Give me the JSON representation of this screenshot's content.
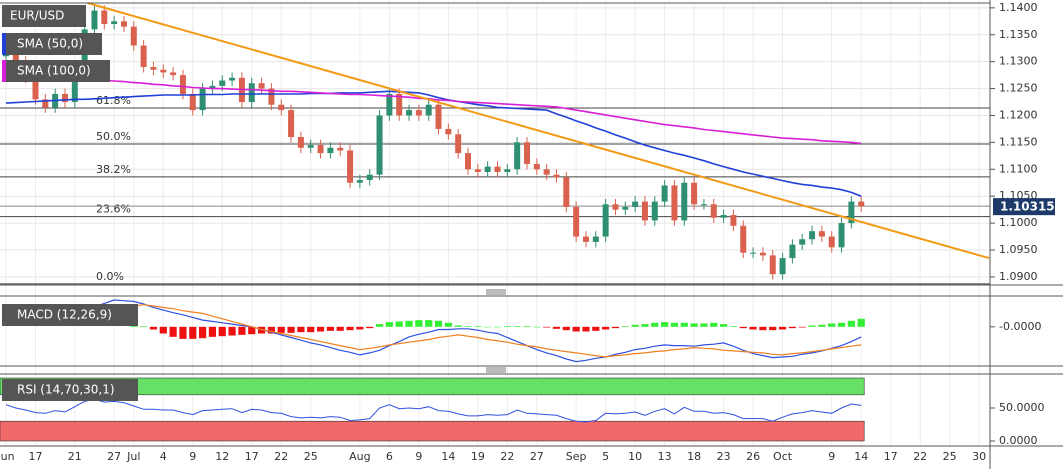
{
  "chart_data": {
    "type": "candlestick",
    "title": "EUR/USD",
    "categories": [
      "Jun",
      null,
      null,
      "17",
      null,
      null,
      null,
      "21",
      null,
      null,
      null,
      "27",
      null,
      "Jul",
      null,
      null,
      "4",
      null,
      null,
      "9",
      null,
      null,
      "12",
      null,
      null,
      "17",
      null,
      null,
      "22",
      null,
      null,
      "25",
      null,
      null,
      null,
      null,
      "Aug",
      null,
      null,
      "6",
      null,
      null,
      "9",
      null,
      null,
      "14",
      null,
      null,
      "19",
      null,
      null,
      "22",
      null,
      null,
      "27",
      null,
      null,
      null,
      "Sep",
      null,
      null,
      "5",
      null,
      null,
      "10",
      null,
      null,
      "13",
      null,
      null,
      "18",
      null,
      null,
      "23",
      null,
      null,
      "26",
      null,
      null,
      "Oct",
      null,
      null,
      null,
      null,
      "9",
      null,
      null,
      "14",
      null,
      null,
      "17",
      null,
      null,
      "22",
      null,
      null,
      "25",
      null,
      null,
      "30",
      null
    ],
    "open": [
      1.131,
      1.1335,
      1.13,
      1.127,
      1.123,
      1.1215,
      1.124,
      1.1225,
      1.129,
      1.136,
      1.1395,
      1.137,
      1.1375,
      1.1365,
      1.133,
      1.129,
      1.1285,
      1.128,
      1.1275,
      1.124,
      1.121,
      1.125,
      1.1255,
      1.1265,
      1.127,
      1.1225,
      1.126,
      1.125,
      1.122,
      1.121,
      1.116,
      1.114,
      1.1145,
      1.113,
      1.114,
      1.1135,
      1.1075,
      1.108,
      1.109,
      1.12,
      1.124,
      1.12,
      1.121,
      1.12,
      1.122,
      1.1175,
      1.1165,
      1.113,
      1.11,
      1.1095,
      1.1105,
      1.1095,
      1.11,
      1.115,
      1.111,
      1.11,
      1.109,
      1.1085,
      1.103,
      1.0975,
      1.0965,
      1.0975,
      1.1035,
      1.1025,
      1.103,
      1.104,
      1.1005,
      1.104,
      1.107,
      1.1005,
      1.1075,
      1.1035,
      1.1035,
      1.101,
      1.1015,
      1.0995,
      1.0945,
      1.0945,
      1.094,
      1.0905,
      1.0935,
      1.096,
      1.097,
      1.0985,
      1.0975,
      1.0955,
      1.1,
      1.104,
      null,
      null,
      null,
      null,
      null,
      null,
      null,
      null,
      null,
      null,
      null,
      null,
      null
    ],
    "high": [
      1.1345,
      1.1345,
      1.131,
      1.128,
      1.124,
      1.125,
      1.125,
      1.13,
      1.137,
      1.1405,
      1.1405,
      1.1385,
      1.1385,
      1.1375,
      1.134,
      1.13,
      1.1295,
      1.129,
      1.1285,
      1.125,
      1.126,
      1.1265,
      1.1275,
      1.128,
      1.128,
      1.127,
      1.127,
      1.126,
      1.123,
      1.122,
      1.117,
      1.1155,
      1.1155,
      1.115,
      1.115,
      1.1145,
      1.109,
      1.11,
      1.121,
      1.125,
      1.125,
      1.122,
      1.122,
      1.123,
      1.123,
      1.1185,
      1.1175,
      1.114,
      1.111,
      1.1115,
      1.1115,
      1.111,
      1.116,
      1.116,
      1.112,
      1.111,
      1.11,
      1.1095,
      1.104,
      1.0985,
      1.0985,
      1.1045,
      1.1045,
      1.104,
      1.105,
      1.105,
      1.105,
      1.108,
      1.108,
      1.1085,
      1.1085,
      1.1045,
      1.1045,
      1.1025,
      1.1025,
      1.1005,
      1.0955,
      1.0955,
      1.095,
      1.0945,
      1.097,
      1.098,
      1.0995,
      1.0995,
      1.0985,
      1.101,
      1.105,
      1.105,
      null,
      null,
      null,
      null,
      null,
      null,
      null,
      null,
      null,
      null,
      null,
      null,
      null
    ],
    "low": [
      1.13,
      1.129,
      1.126,
      1.122,
      1.1205,
      1.1205,
      1.1215,
      1.1215,
      1.128,
      1.135,
      1.136,
      1.136,
      1.1355,
      1.132,
      1.128,
      1.1275,
      1.127,
      1.1265,
      1.123,
      1.12,
      1.12,
      1.124,
      1.1245,
      1.1255,
      1.1215,
      1.1215,
      1.124,
      1.121,
      1.12,
      1.115,
      1.113,
      1.113,
      1.112,
      1.112,
      1.1125,
      1.1065,
      1.1065,
      1.107,
      1.108,
      1.119,
      1.119,
      1.119,
      1.119,
      1.119,
      1.1165,
      1.1155,
      1.112,
      1.109,
      1.1085,
      1.1085,
      1.1085,
      1.1085,
      1.109,
      1.11,
      1.109,
      1.108,
      1.1075,
      1.102,
      1.0965,
      1.0955,
      1.0955,
      1.0965,
      1.1015,
      1.1015,
      1.102,
      1.0995,
      1.0995,
      1.103,
      1.0995,
      1.0995,
      1.1025,
      1.1025,
      1.1,
      1.1,
      1.0985,
      1.0935,
      1.0935,
      1.093,
      1.0895,
      1.0895,
      1.0925,
      1.095,
      1.096,
      1.0965,
      1.0945,
      1.0945,
      1.099,
      1.1021,
      null,
      null,
      null,
      null,
      null,
      null,
      null,
      null,
      null,
      null,
      null,
      null,
      null
    ],
    "close": [
      1.1335,
      1.13,
      1.127,
      1.123,
      1.1215,
      1.124,
      1.1225,
      1.129,
      1.136,
      1.1395,
      1.137,
      1.1375,
      1.1365,
      1.133,
      1.129,
      1.1285,
      1.128,
      1.1275,
      1.124,
      1.121,
      1.125,
      1.1255,
      1.1265,
      1.127,
      1.1225,
      1.126,
      1.125,
      1.122,
      1.121,
      1.116,
      1.114,
      1.1145,
      1.113,
      1.114,
      1.1135,
      1.1075,
      1.108,
      1.109,
      1.12,
      1.124,
      1.12,
      1.121,
      1.12,
      1.122,
      1.1175,
      1.1165,
      1.113,
      1.11,
      1.1095,
      1.1105,
      1.1095,
      1.11,
      1.115,
      1.111,
      1.11,
      1.109,
      1.1085,
      1.103,
      1.0975,
      1.0965,
      1.0975,
      1.1035,
      1.1025,
      1.103,
      1.104,
      1.1005,
      1.104,
      1.107,
      1.1005,
      1.1075,
      1.1035,
      1.1035,
      1.101,
      1.1015,
      1.0995,
      1.0945,
      1.0945,
      1.094,
      1.0905,
      1.0935,
      1.096,
      1.097,
      1.0985,
      1.0975,
      1.0955,
      1.1,
      1.104,
      1.1031,
      null,
      null,
      null,
      null,
      null,
      null,
      null,
      null,
      null,
      null,
      null,
      null,
      null
    ],
    "up_color": "#2f8f73",
    "down_color": "#d9614d",
    "ylim": [
      1.0885,
      1.1409
    ],
    "yticks": [
      {
        "value": 1.09,
        "label": "1.0900"
      },
      {
        "value": 1.095,
        "label": "1.0950"
      },
      {
        "value": 1.1,
        "label": "1.1000"
      },
      {
        "value": 1.105,
        "label": "1.1050"
      },
      {
        "value": 1.11,
        "label": "1.1100"
      },
      {
        "value": 1.115,
        "label": "1.1150"
      },
      {
        "value": 1.12,
        "label": "1.1200"
      },
      {
        "value": 1.125,
        "label": "1.1250"
      },
      {
        "value": 1.13,
        "label": "1.1300"
      },
      {
        "value": 1.135,
        "label": "1.1350"
      },
      {
        "value": 1.14,
        "label": "1.1400"
      }
    ],
    "grid": true,
    "overlays": [
      {
        "name": "SMA (50,0)",
        "color": "#2140d8",
        "values": [
          1.1223,
          1.1224,
          1.1225,
          1.1226,
          1.1227,
          1.1228,
          1.1229,
          1.123,
          1.123,
          1.1231,
          1.1232,
          1.1233,
          1.1234,
          1.1235,
          1.1236,
          1.1237,
          1.1238,
          1.1238,
          1.1238,
          1.1238,
          1.1239,
          1.1239,
          1.1239,
          1.124,
          1.124,
          1.124,
          1.124,
          1.124,
          1.124,
          1.124,
          1.124,
          1.1241,
          1.1241,
          1.1241,
          1.1242,
          1.1242,
          1.1242,
          1.1243,
          1.1244,
          1.1245,
          1.1244,
          1.1243,
          1.1242,
          1.1238,
          1.1233,
          1.1229,
          1.1226,
          1.1223,
          1.122,
          1.1218,
          1.1215,
          1.1214,
          1.1213,
          1.1212,
          1.1211,
          1.121,
          1.1203,
          1.1197,
          1.119,
          1.1184,
          1.1177,
          1.1171,
          1.1164,
          1.1158,
          1.1151,
          1.1145,
          1.114,
          1.1135,
          1.113,
          1.1126,
          1.1121,
          1.1116,
          1.111,
          1.1105,
          1.11,
          1.1095,
          1.1091,
          1.1087,
          1.1083,
          1.1079,
          1.1075,
          1.1072,
          1.107,
          1.1067,
          1.1065,
          1.1062,
          1.1057,
          1.105,
          null,
          null,
          null,
          null,
          null,
          null,
          null,
          null,
          null,
          null,
          null,
          null,
          null
        ]
      },
      {
        "name": "SMA (100,0)",
        "color": "#d81fd8",
        "values": [
          1.1279,
          1.1278,
          1.1276,
          1.1275,
          1.1274,
          1.1272,
          1.1271,
          1.127,
          1.1268,
          1.1267,
          1.1266,
          1.1264,
          1.1263,
          1.1261,
          1.126,
          1.1258,
          1.1257,
          1.1255,
          1.1254,
          1.1252,
          1.1251,
          1.125,
          1.125,
          1.1249,
          1.1248,
          1.1248,
          1.1247,
          1.1246,
          1.1245,
          1.1245,
          1.1244,
          1.1243,
          1.1242,
          1.1241,
          1.124,
          1.1239,
          1.1239,
          1.1238,
          1.1237,
          1.1236,
          1.1235,
          1.1234,
          1.1232,
          1.1231,
          1.1229,
          1.1228,
          1.1226,
          1.1225,
          1.1224,
          1.1223,
          1.1222,
          1.1221,
          1.122,
          1.1219,
          1.1218,
          1.1217,
          1.1216,
          1.1213,
          1.121,
          1.1207,
          1.1204,
          1.1201,
          1.1198,
          1.1195,
          1.1192,
          1.1189,
          1.1186,
          1.1183,
          1.1181,
          1.1179,
          1.1177,
          1.1174,
          1.1172,
          1.117,
          1.1168,
          1.1166,
          1.1164,
          1.1162,
          1.116,
          1.1158,
          1.1157,
          1.1156,
          1.1155,
          1.1153,
          1.1152,
          1.1151,
          1.115,
          1.1148,
          null,
          null,
          null,
          null,
          null,
          null,
          null,
          null,
          null,
          null,
          null,
          null,
          null
        ]
      }
    ],
    "trendline": {
      "color": "#f39a14",
      "x": [
        8.3,
        100
      ],
      "values": [
        1.1409,
        1.0935
      ]
    },
    "fib_levels": [
      {
        "label": "0.0%",
        "value": 1.0887
      },
      {
        "label": "23.6%",
        "value": 1.1012
      },
      {
        "label": "38.2%",
        "value": 1.1086
      },
      {
        "label": "50.0%",
        "value": 1.1147
      },
      {
        "label": "61.8%",
        "value": 1.1214
      }
    ],
    "last_price": 1.10315,
    "indicators": [
      {
        "type": "macd",
        "name": "MACD (12,26,9)",
        "ylim": [
          -0.0057,
          0.0043
        ],
        "yticks": [
          {
            "value": 0,
            "label": "-0.0000"
          }
        ],
        "macd_color": "#3050e0",
        "signal_color": "#f08020",
        "positive_color": "#33ee33",
        "negative_color": "#ee1111",
        "macd": [
          0.0015,
          0.0014,
          0.0014,
          0.0013,
          0.0013,
          0.0012,
          0.0016,
          0.0021,
          0.0025,
          0.003,
          0.0035,
          0.004,
          0.0039,
          0.0038,
          0.0034,
          0.0029,
          0.0025,
          0.0021,
          0.0018,
          0.0014,
          0.001,
          0.0008,
          0.0006,
          0.0004,
          0.0002,
          0.0,
          -0.0004,
          -0.0008,
          -0.0012,
          -0.0016,
          -0.002,
          -0.0024,
          -0.0027,
          -0.0031,
          -0.0035,
          -0.0038,
          -0.0042,
          -0.0039,
          -0.0035,
          -0.0028,
          -0.0022,
          -0.0015,
          -0.0011,
          -0.0008,
          -0.0004,
          -0.0004,
          -0.0003,
          -0.0003,
          -0.0005,
          -0.0008,
          -0.001,
          -0.0016,
          -0.0022,
          -0.0028,
          -0.0034,
          -0.0039,
          -0.0043,
          -0.0048,
          -0.0052,
          -0.005,
          -0.0047,
          -0.0045,
          -0.0041,
          -0.0038,
          -0.0034,
          -0.0032,
          -0.0029,
          -0.0027,
          -0.0028,
          -0.0028,
          -0.0029,
          -0.0027,
          -0.0026,
          -0.0024,
          -0.0029,
          -0.0035,
          -0.004,
          -0.0043,
          -0.0046,
          -0.0045,
          -0.0044,
          -0.0041,
          -0.0039,
          -0.0036,
          -0.0032,
          -0.0028,
          -0.0022,
          -0.0015,
          null,
          null,
          null,
          null,
          null,
          null,
          null,
          null,
          null,
          null,
          null,
          null,
          null
        ],
        "signal": [
          0.001,
          0.0011,
          0.0012,
          0.0013,
          0.0013,
          0.0014,
          0.0015,
          0.0017,
          0.002,
          0.0022,
          0.0024,
          0.0027,
          0.0029,
          0.0031,
          0.0033,
          0.0031,
          0.0029,
          0.0027,
          0.0024,
          0.0022,
          0.002,
          0.0016,
          0.0012,
          0.0008,
          0.0004,
          0.0,
          -0.0004,
          -0.0007,
          -0.001,
          -0.0013,
          -0.0016,
          -0.0019,
          -0.0022,
          -0.0025,
          -0.0028,
          -0.0031,
          -0.0034,
          -0.0032,
          -0.003,
          -0.0027,
          -0.0025,
          -0.0023,
          -0.0021,
          -0.0019,
          -0.0016,
          -0.0014,
          -0.0012,
          -0.0014,
          -0.0016,
          -0.0019,
          -0.0021,
          -0.0023,
          -0.0026,
          -0.0028,
          -0.003,
          -0.0033,
          -0.0035,
          -0.0037,
          -0.0039,
          -0.0041,
          -0.0043,
          -0.0045,
          -0.0043,
          -0.0042,
          -0.004,
          -0.0039,
          -0.0037,
          -0.0036,
          -0.0034,
          -0.0033,
          -0.0031,
          -0.0032,
          -0.0033,
          -0.0035,
          -0.0036,
          -0.0037,
          -0.0038,
          -0.0039,
          -0.0041,
          -0.0042,
          -0.004,
          -0.0039,
          -0.0037,
          -0.0035,
          -0.0033,
          -0.0031,
          -0.0029,
          -0.0027,
          null,
          null,
          null,
          null,
          null,
          null,
          null,
          null,
          null,
          null,
          null,
          null,
          null
        ],
        "histogram": [
          null,
          null,
          null,
          null,
          null,
          null,
          null,
          null,
          null,
          null,
          null,
          null,
          null,
          0.0002,
          0.0001,
          -0.0004,
          -0.001,
          -0.0015,
          -0.0018,
          -0.0018,
          -0.0017,
          -0.0015,
          -0.0014,
          -0.0013,
          -0.0012,
          -0.0011,
          -0.001,
          -0.001,
          -0.0009,
          -0.0009,
          -0.0008,
          -0.0008,
          -0.0007,
          -0.0006,
          -0.0006,
          -0.0005,
          -0.0004,
          -0.0002,
          0.0004,
          0.0007,
          0.0008,
          0.0009,
          0.001,
          0.001,
          0.0009,
          0.0006,
          0.0002,
          0.0001,
          0.0001,
          0.0,
          0.0,
          0.0001,
          0.0001,
          0.0001,
          0.0,
          -0.0001,
          -0.0003,
          -0.0005,
          -0.0007,
          -0.0007,
          -0.0006,
          -0.0004,
          -0.0002,
          0.0001,
          0.0003,
          0.0004,
          0.0006,
          0.0007,
          0.0006,
          0.0006,
          0.0005,
          0.0005,
          0.0006,
          0.0004,
          0.0001,
          -0.0002,
          -0.0004,
          -0.0005,
          -0.0005,
          -0.0004,
          -0.0002,
          -0.0001,
          0.0002,
          0.0003,
          0.0005,
          0.0006,
          0.0009,
          0.0012,
          null,
          null,
          null,
          null,
          null,
          null,
          null,
          null,
          null,
          null,
          null,
          null,
          null
        ]
      },
      {
        "type": "rsi",
        "name": "RSI (14,70,30,1)",
        "ylim": [
          0,
          100
        ],
        "yticks": [
          {
            "value": 50,
            "label": "50.0000"
          },
          {
            "value": 0,
            "label": "0.0000"
          }
        ],
        "overbought": 70,
        "oversold": 30,
        "line_color": "#3050e0",
        "overbought_color": "#66e066",
        "oversold_color": "#f06a6a",
        "values": [
          55,
          50,
          47,
          43,
          42,
          46,
          44,
          52,
          60,
          63,
          59,
          60,
          58,
          53,
          48,
          48,
          47,
          47,
          43,
          40,
          46,
          47,
          48,
          49,
          43,
          48,
          47,
          43,
          42,
          37,
          35,
          36,
          35,
          37,
          36,
          31,
          32,
          34,
          50,
          55,
          49,
          50,
          49,
          52,
          46,
          45,
          41,
          38,
          38,
          40,
          39,
          40,
          47,
          42,
          41,
          40,
          39,
          34,
          30,
          29,
          31,
          42,
          41,
          42,
          44,
          39,
          45,
          49,
          41,
          51,
          45,
          45,
          42,
          43,
          40,
          34,
          34,
          34,
          30,
          36,
          41,
          43,
          46,
          44,
          42,
          50,
          56,
          54,
          null,
          null,
          null,
          null,
          null,
          null,
          null,
          null,
          null,
          null,
          null,
          null,
          null
        ]
      }
    ]
  }
}
